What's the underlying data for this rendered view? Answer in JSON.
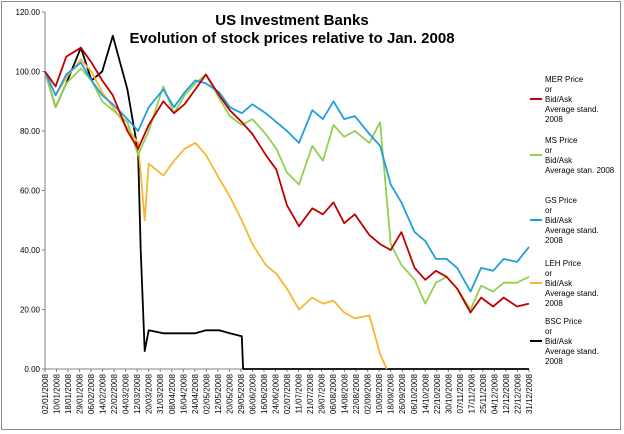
{
  "chart_data": {
    "type": "line",
    "title": [
      "US Investment Banks",
      "Evolution of stock prices relative to Jan. 2008"
    ],
    "xlabel": "",
    "ylabel": "",
    "ylim": [
      0,
      120
    ],
    "y_ticks": [
      "0.00",
      "20.00",
      "40.00",
      "60.00",
      "80.00",
      "100.00",
      "120.00"
    ],
    "x_tick_labels": [
      "02/01/2008",
      "10/01/2008",
      "18/01/2008",
      "29/01/2008",
      "06/02/2008",
      "14/02/2008",
      "22/02/2008",
      "04/03/2008",
      "12/03/2008",
      "20/03/2008",
      "31/03/2008",
      "08/04/2008",
      "16/04/2008",
      "24/04/2008",
      "02/05/2008",
      "12/05/2008",
      "20/05/2008",
      "29/05/2008",
      "06/06/2008",
      "16/06/2008",
      "24/06/2008",
      "02/07/2008",
      "11/07/2008",
      "21/07/2008",
      "29/07/2008",
      "06/08/2008",
      "14/08/2008",
      "22/08/2008",
      "02/09/2008",
      "10/09/2008",
      "18/09/2008",
      "26/09/2008",
      "06/10/2008",
      "14/10/2008",
      "22/10/2008",
      "30/10/2008",
      "07/11/2008",
      "17/11/2008",
      "25/11/2008",
      "04/12/2008",
      "12/12/2008",
      "22/12/2008",
      "31/12/2008"
    ],
    "grid": false,
    "legend_placement": "right",
    "series": [
      {
        "name": [
          "MER Price",
          "or",
          "Bid/Ask",
          "Average stand.",
          "2008"
        ],
        "color": "#c00000",
        "x": [
          "2008-01-02",
          "2008-01-10",
          "2008-01-18",
          "2008-01-29",
          "2008-02-06",
          "2008-02-14",
          "2008-02-22",
          "2008-03-04",
          "2008-03-12",
          "2008-03-20",
          "2008-03-31",
          "2008-04-08",
          "2008-04-16",
          "2008-04-24",
          "2008-05-02",
          "2008-05-12",
          "2008-05-20",
          "2008-05-29",
          "2008-06-06",
          "2008-06-16",
          "2008-06-24",
          "2008-07-02",
          "2008-07-11",
          "2008-07-21",
          "2008-07-29",
          "2008-08-06",
          "2008-08-14",
          "2008-08-22",
          "2008-09-02",
          "2008-09-10",
          "2008-09-18",
          "2008-09-26",
          "2008-10-06",
          "2008-10-14",
          "2008-10-22",
          "2008-10-30",
          "2008-11-07",
          "2008-11-17",
          "2008-11-25",
          "2008-12-04",
          "2008-12-12",
          "2008-12-22",
          "2008-12-31"
        ],
        "values": [
          100,
          95,
          105,
          108,
          103,
          97,
          92,
          80,
          74,
          82,
          90,
          86,
          89,
          94,
          99,
          92,
          87,
          83,
          79,
          72,
          67,
          55,
          48,
          54,
          52,
          56,
          49,
          52,
          45,
          42,
          40,
          46,
          34,
          30,
          33,
          31,
          27,
          19,
          24,
          21,
          24,
          21,
          22
        ]
      },
      {
        "name": [
          "MS Price",
          "or",
          "Bid/Ask",
          "Average stan. 2008"
        ],
        "color": "#92d050",
        "x": [
          "2008-01-02",
          "2008-01-10",
          "2008-01-18",
          "2008-01-29",
          "2008-02-06",
          "2008-02-14",
          "2008-02-22",
          "2008-03-04",
          "2008-03-12",
          "2008-03-20",
          "2008-03-31",
          "2008-04-08",
          "2008-04-16",
          "2008-04-24",
          "2008-05-02",
          "2008-05-12",
          "2008-05-20",
          "2008-05-29",
          "2008-06-06",
          "2008-06-16",
          "2008-06-24",
          "2008-07-02",
          "2008-07-11",
          "2008-07-21",
          "2008-07-29",
          "2008-08-06",
          "2008-08-14",
          "2008-08-22",
          "2008-09-02",
          "2008-09-10",
          "2008-09-18",
          "2008-09-26",
          "2008-10-06",
          "2008-10-14",
          "2008-10-22",
          "2008-10-30",
          "2008-11-07",
          "2008-11-17",
          "2008-11-25",
          "2008-12-04",
          "2008-12-12",
          "2008-12-22",
          "2008-12-31"
        ],
        "values": [
          100,
          88,
          96,
          101,
          97,
          90,
          87,
          83,
          72,
          80,
          95,
          86,
          92,
          96,
          99,
          91,
          85,
          82,
          84,
          79,
          74,
          66,
          62,
          75,
          70,
          82,
          78,
          80,
          76,
          83,
          42,
          35,
          30,
          22,
          29,
          31,
          27,
          20,
          28,
          26,
          29,
          29,
          31
        ]
      },
      {
        "name": [
          "GS Price",
          "or",
          "Bid/Ask",
          "Average stand.",
          "2008"
        ],
        "color": "#1f9ee0",
        "x": [
          "2008-01-02",
          "2008-01-10",
          "2008-01-18",
          "2008-01-29",
          "2008-02-06",
          "2008-02-14",
          "2008-02-22",
          "2008-03-04",
          "2008-03-12",
          "2008-03-20",
          "2008-03-31",
          "2008-04-08",
          "2008-04-16",
          "2008-04-24",
          "2008-05-02",
          "2008-05-12",
          "2008-05-20",
          "2008-05-29",
          "2008-06-06",
          "2008-06-16",
          "2008-06-24",
          "2008-07-02",
          "2008-07-11",
          "2008-07-21",
          "2008-07-29",
          "2008-08-06",
          "2008-08-14",
          "2008-08-22",
          "2008-09-02",
          "2008-09-10",
          "2008-09-18",
          "2008-09-26",
          "2008-10-06",
          "2008-10-14",
          "2008-10-22",
          "2008-10-30",
          "2008-11-07",
          "2008-11-17",
          "2008-11-25",
          "2008-12-04",
          "2008-12-12",
          "2008-12-22",
          "2008-12-31"
        ],
        "values": [
          100,
          92,
          99,
          103,
          97,
          92,
          89,
          84,
          80,
          88,
          94,
          88,
          93,
          97,
          96,
          93,
          88,
          86,
          89,
          86,
          83,
          80,
          76,
          87,
          84,
          90,
          84,
          85,
          79,
          75,
          62,
          56,
          46,
          43,
          37,
          37,
          34,
          26,
          34,
          33,
          37,
          36,
          41
        ]
      },
      {
        "name": [
          "LEH Price",
          "or",
          "Bid/Ask",
          "Average stand.",
          "2008"
        ],
        "color": "#f7b731",
        "x": [
          "2008-01-02",
          "2008-01-10",
          "2008-01-18",
          "2008-01-29",
          "2008-02-06",
          "2008-02-14",
          "2008-02-22",
          "2008-03-04",
          "2008-03-12",
          "2008-03-17",
          "2008-03-20",
          "2008-03-31",
          "2008-04-08",
          "2008-04-16",
          "2008-04-24",
          "2008-05-02",
          "2008-05-12",
          "2008-05-20",
          "2008-05-29",
          "2008-06-06",
          "2008-06-16",
          "2008-06-24",
          "2008-07-02",
          "2008-07-11",
          "2008-07-21",
          "2008-07-29",
          "2008-08-06",
          "2008-08-14",
          "2008-08-22",
          "2008-09-02",
          "2008-09-10",
          "2008-09-15"
        ],
        "values": [
          100,
          92,
          98,
          104,
          100,
          93,
          88,
          81,
          76,
          50,
          69,
          65,
          70,
          74,
          76,
          72,
          64,
          58,
          50,
          42,
          35,
          32,
          27,
          20,
          24,
          22,
          23,
          19,
          17,
          18,
          5,
          0
        ]
      },
      {
        "name": [
          "BSC Price",
          "or",
          "Bid/Ask",
          "Average stand.",
          "2008"
        ],
        "color": "#000000",
        "x": [
          "2008-01-02",
          "2008-01-10",
          "2008-01-18",
          "2008-01-29",
          "2008-02-06",
          "2008-02-14",
          "2008-02-22",
          "2008-03-04",
          "2008-03-12",
          "2008-03-14",
          "2008-03-17",
          "2008-03-20",
          "2008-03-31",
          "2008-04-08",
          "2008-04-16",
          "2008-04-24",
          "2008-05-02",
          "2008-05-12",
          "2008-05-20",
          "2008-05-29",
          "2008-05-30",
          "2008-06-06",
          "2008-12-31"
        ],
        "values": [
          100,
          88,
          96,
          108,
          97,
          100,
          112,
          94,
          73,
          40,
          6,
          13,
          12,
          12,
          12,
          12,
          13,
          13,
          12,
          11,
          0,
          0,
          0
        ]
      }
    ]
  }
}
